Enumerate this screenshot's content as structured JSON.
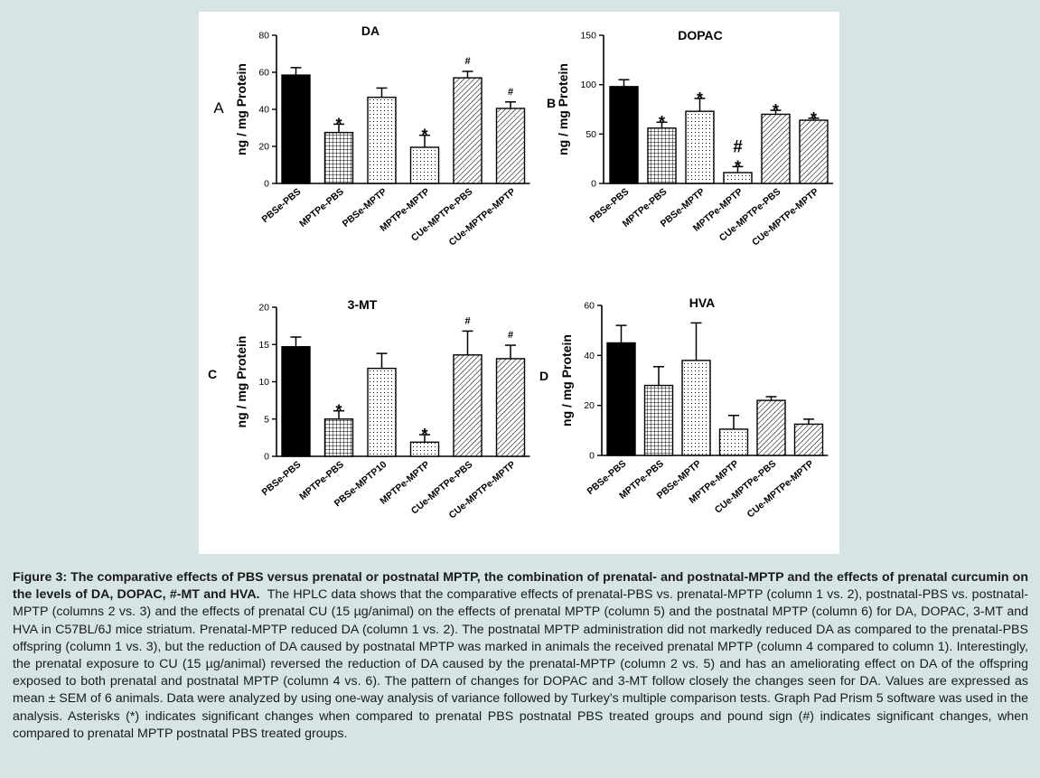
{
  "colors": {
    "background": "#d6e5e4",
    "panel": "#ffffff",
    "bar_stroke": "#000000",
    "axis": "#000000"
  },
  "chart_data": [
    {
      "type": "bar",
      "panel_letter": "A",
      "title": "DA",
      "ylabel": "ng / mg Protein",
      "ylim": [
        0,
        80
      ],
      "yticks": [
        "0",
        "20",
        "40",
        "60",
        "80"
      ],
      "categories": [
        "PBSe-PBS",
        "MPTPe-PBS",
        "PBSe-MPTP",
        "MPTPe-MPTP",
        "CUe-MPTPe-PBS",
        "CUe-MPTPe-MPTP"
      ],
      "values": [
        58.5,
        27.5,
        46.5,
        19.5,
        57,
        40.5
      ],
      "errors": [
        4,
        4.5,
        5,
        6.5,
        3.5,
        3.5
      ],
      "patterns": [
        "solid",
        "grid",
        "dots",
        "dots",
        "hatch",
        "hatch"
      ],
      "markers": [
        "",
        "*",
        "",
        "*",
        "#",
        "#"
      ]
    },
    {
      "type": "bar",
      "panel_letter": "B",
      "title": "DOPAC",
      "ylabel": "ng / mg Protein",
      "ylim": [
        0,
        150
      ],
      "yticks": [
        "0",
        "50",
        "100",
        "150"
      ],
      "categories": [
        "PBSe-PBS",
        "MPTPe-PBS",
        "PBSe-MPTP",
        "MPTPe-MPTP",
        "CUe-MPTPe-PBS",
        "CUe-MPTPe-MPTP"
      ],
      "values": [
        98,
        56,
        73,
        11,
        70,
        64
      ],
      "errors": [
        7,
        6,
        13,
        6,
        4,
        2
      ],
      "patterns": [
        "solid",
        "grid",
        "dots",
        "dots",
        "hatch",
        "hatch"
      ],
      "markers": [
        "",
        "*",
        "*",
        "*",
        "*",
        "*"
      ],
      "extra_markers": [
        "",
        "",
        "",
        "#",
        "",
        ""
      ]
    },
    {
      "type": "bar",
      "panel_letter": "C",
      "title": "3-MT",
      "ylabel": "ng / mg Protein",
      "ylim": [
        0,
        20
      ],
      "yticks": [
        "0",
        "5",
        "10",
        "15",
        "20"
      ],
      "categories": [
        "PBSe-PBS",
        "MPTPe-PBS",
        "PBSe-MPTP10",
        "MPTPe-MPTP",
        "CUe-MPTPe-PBS",
        "CUe-MPTPe-MPTP"
      ],
      "values": [
        14.7,
        5,
        11.8,
        1.9,
        13.6,
        13.1
      ],
      "errors": [
        1.3,
        1.1,
        2,
        1,
        3.2,
        1.8
      ],
      "patterns": [
        "solid",
        "grid",
        "dots",
        "dots",
        "hatch",
        "hatch"
      ],
      "markers": [
        "",
        "*",
        "",
        "*",
        "#",
        "#"
      ]
    },
    {
      "type": "bar",
      "panel_letter": "D",
      "title": "HVA",
      "ylabel": "ng / mg Protein",
      "ylim": [
        0,
        60
      ],
      "yticks": [
        "0",
        "20",
        "40",
        "60"
      ],
      "categories": [
        "PBSe-PBS",
        "MPTPe-PBS",
        "PBSe-MPTP",
        "MPTPe-MPTP",
        "CUe-MPTPe-PBS",
        "CUe-MPTPe-MPTP"
      ],
      "values": [
        45,
        28,
        38,
        10.5,
        22,
        12.5
      ],
      "errors": [
        7,
        7.5,
        15,
        5.5,
        1.5,
        2
      ],
      "patterns": [
        "solid",
        "grid",
        "dots",
        "dots",
        "hatch",
        "hatch"
      ],
      "markers": [
        "",
        "",
        "",
        "",
        "",
        ""
      ]
    }
  ],
  "caption": {
    "bold": "Figure 3: The comparative effects of PBS versus prenatal or postnatal MPTP, the combination of prenatal- and postnatal-MPTP and the effects of prenatal curcumin on the levels of DA, DOPAC, #-MT and HVA.",
    "body": "The HPLC data shows that the comparative effects of prenatal-PBS vs. prenatal-MPTP (column 1 vs. 2), postnatal-PBS vs. postnatal-MPTP (columns 2 vs. 3) and the effects of prenatal CU (15 µg/animal) on the effects of prenatal MPTP (column 5) and the postnatal MPTP (column 6) for DA, DOPAC, 3-MT and HVA in C57BL/6J mice striatum. Prenatal-MPTP reduced DA (column 1 vs. 2). The postnatal MPTP administration did not markedly reduced DA as compared to the prenatal-PBS offspring (column 1 vs. 3), but the reduction of DA caused by postnatal MPTP was marked in animals the received prenatal MPTP (column 4 compared to column 1). Interestingly, the prenatal exposure to CU (15 µg/animal) reversed the reduction of DA caused by the prenatal-MPTP (column 2 vs. 5) and has an ameliorating effect on DA of the offspring exposed to both prenatal and postnatal MPTP (column 4 vs. 6). The pattern of changes for DOPAC and 3-MT follow closely the changes seen for DA. Values are expressed as mean ± SEM of 6 animals. Data were analyzed by using one-way analysis of variance followed by Turkey’s multiple comparison tests. Graph Pad Prism 5 software was used in the analysis. Asterisks (*) indicates significant changes when compared to prenatal PBS postnatal PBS treated groups and pound sign (#) indicates significant changes, when compared to prenatal MPTP postnatal PBS treated groups."
  }
}
